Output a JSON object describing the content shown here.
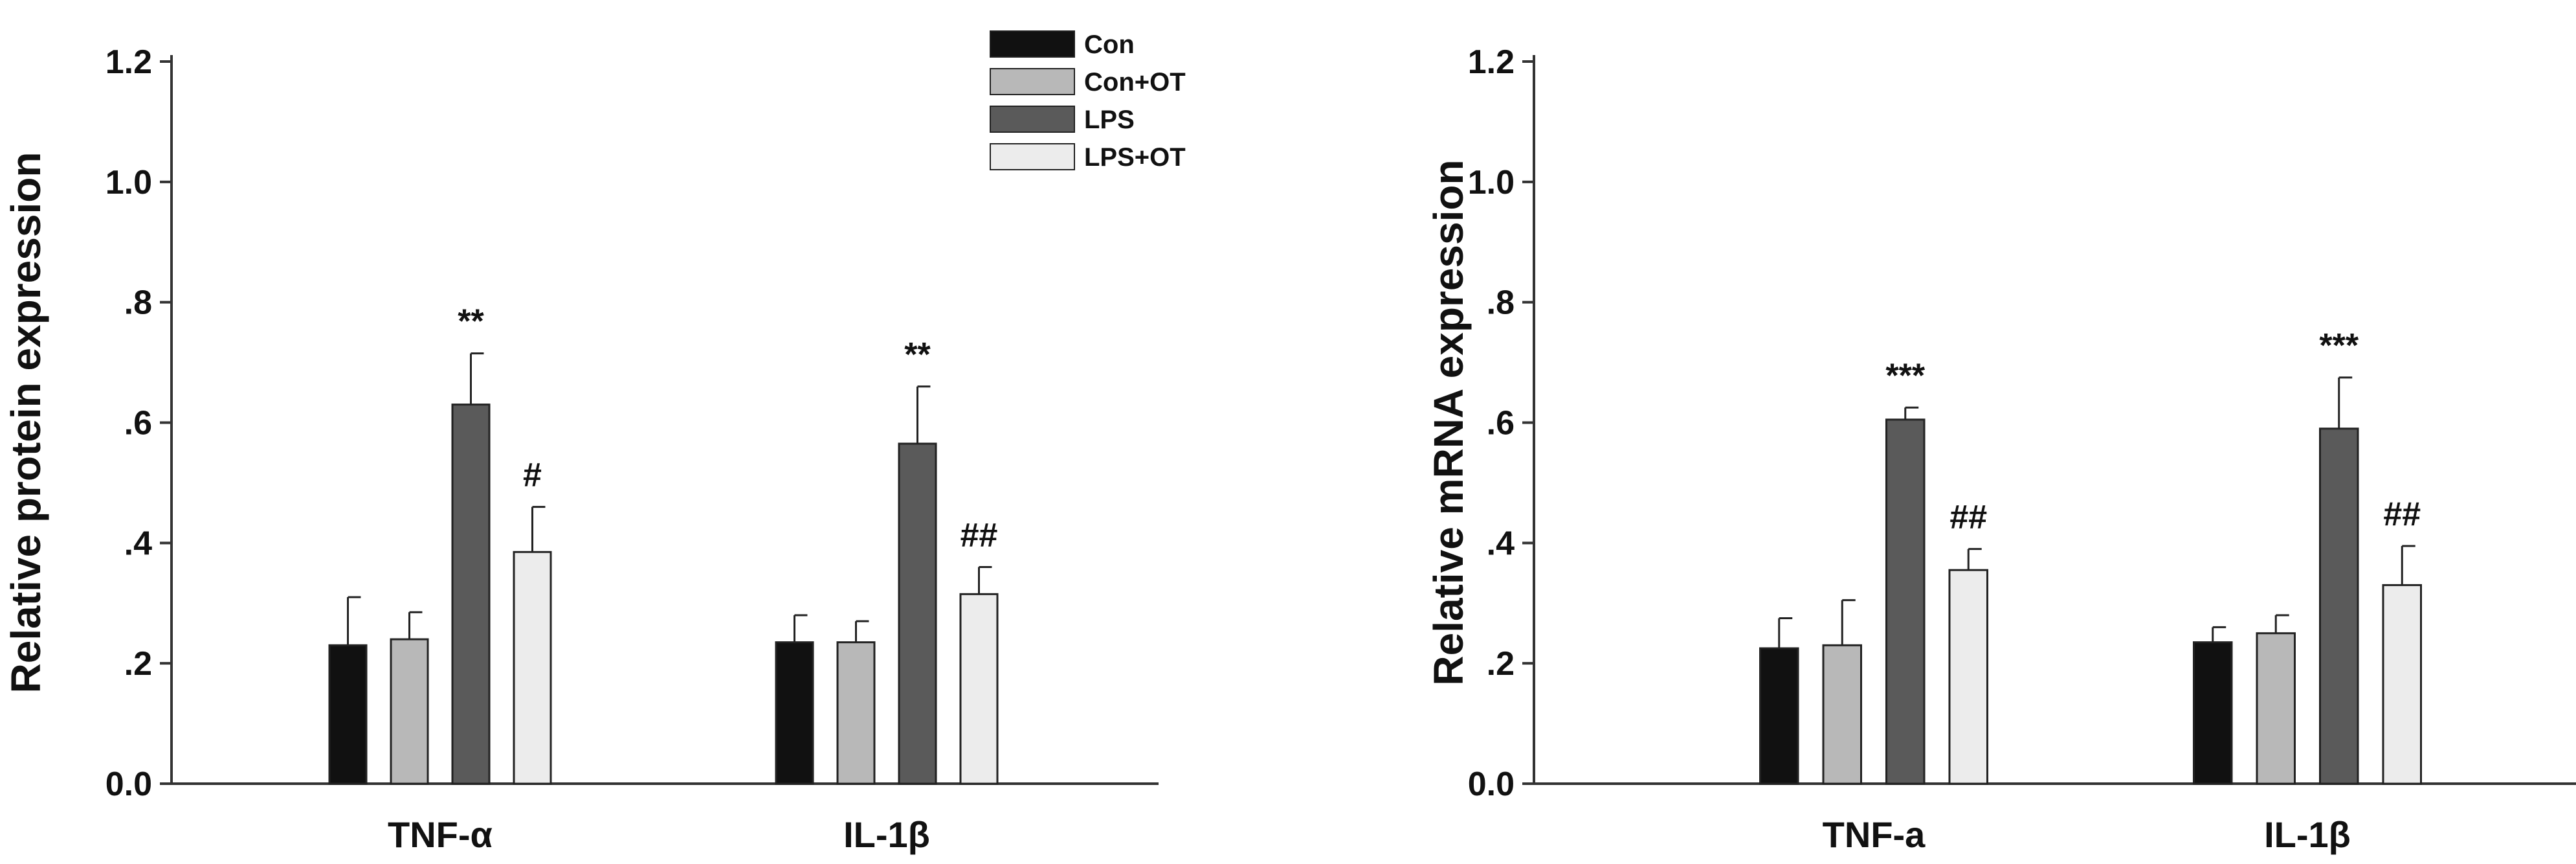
{
  "chart_data": [
    {
      "type": "bar",
      "title": "",
      "xlabel": "",
      "ylabel": "Relative protein expression",
      "ylim": [
        0,
        1.2
      ],
      "yticks": [
        "0.0",
        ".2",
        ".4",
        ".6",
        ".8",
        "1.0",
        "1.2"
      ],
      "categories": [
        "TNF-α",
        "IL-1β"
      ],
      "legend_position": "top-right",
      "series": [
        {
          "name": "Con",
          "color": "#111111",
          "values": [
            0.23,
            0.235
          ],
          "errors": [
            0.08,
            0.045
          ]
        },
        {
          "name": "Con+OT",
          "color": "#b8b8b8",
          "values": [
            0.24,
            0.235
          ],
          "errors": [
            0.045,
            0.035
          ]
        },
        {
          "name": "LPS",
          "color": "#5a5a5a",
          "values": [
            0.63,
            0.565
          ],
          "errors": [
            0.085,
            0.095
          ]
        },
        {
          "name": "LPS+OT",
          "color": "#ececec",
          "values": [
            0.385,
            0.315
          ],
          "errors": [
            0.075,
            0.045
          ]
        }
      ],
      "annotations": [
        {
          "category": "TNF-α",
          "series": "LPS",
          "text": "**"
        },
        {
          "category": "TNF-α",
          "series": "LPS+OT",
          "text": "#"
        },
        {
          "category": "IL-1β",
          "series": "LPS",
          "text": "**"
        },
        {
          "category": "IL-1β",
          "series": "LPS+OT",
          "text": "##"
        }
      ]
    },
    {
      "type": "bar",
      "title": "",
      "xlabel": "",
      "ylabel": "Relative mRNA expression",
      "ylim": [
        0,
        1.2
      ],
      "yticks": [
        "0.0",
        ".2",
        ".4",
        ".6",
        ".8",
        "1.0",
        "1.2"
      ],
      "categories": [
        "TNF-a",
        "IL-1β"
      ],
      "series": [
        {
          "name": "Con",
          "color": "#111111",
          "values": [
            0.225,
            0.235
          ],
          "errors": [
            0.05,
            0.025
          ]
        },
        {
          "name": "Con+OT",
          "color": "#b8b8b8",
          "values": [
            0.23,
            0.25
          ],
          "errors": [
            0.075,
            0.03
          ]
        },
        {
          "name": "LPS",
          "color": "#5a5a5a",
          "values": [
            0.605,
            0.59
          ],
          "errors": [
            0.02,
            0.085
          ]
        },
        {
          "name": "LPS+OT",
          "color": "#ececec",
          "values": [
            0.355,
            0.33
          ],
          "errors": [
            0.035,
            0.065
          ]
        }
      ],
      "annotations": [
        {
          "category": "TNF-a",
          "series": "LPS",
          "text": "***"
        },
        {
          "category": "TNF-a",
          "series": "LPS+OT",
          "text": "##"
        },
        {
          "category": "IL-1β",
          "series": "LPS",
          "text": "***"
        },
        {
          "category": "IL-1β",
          "series": "LPS+OT",
          "text": "##"
        }
      ]
    }
  ]
}
